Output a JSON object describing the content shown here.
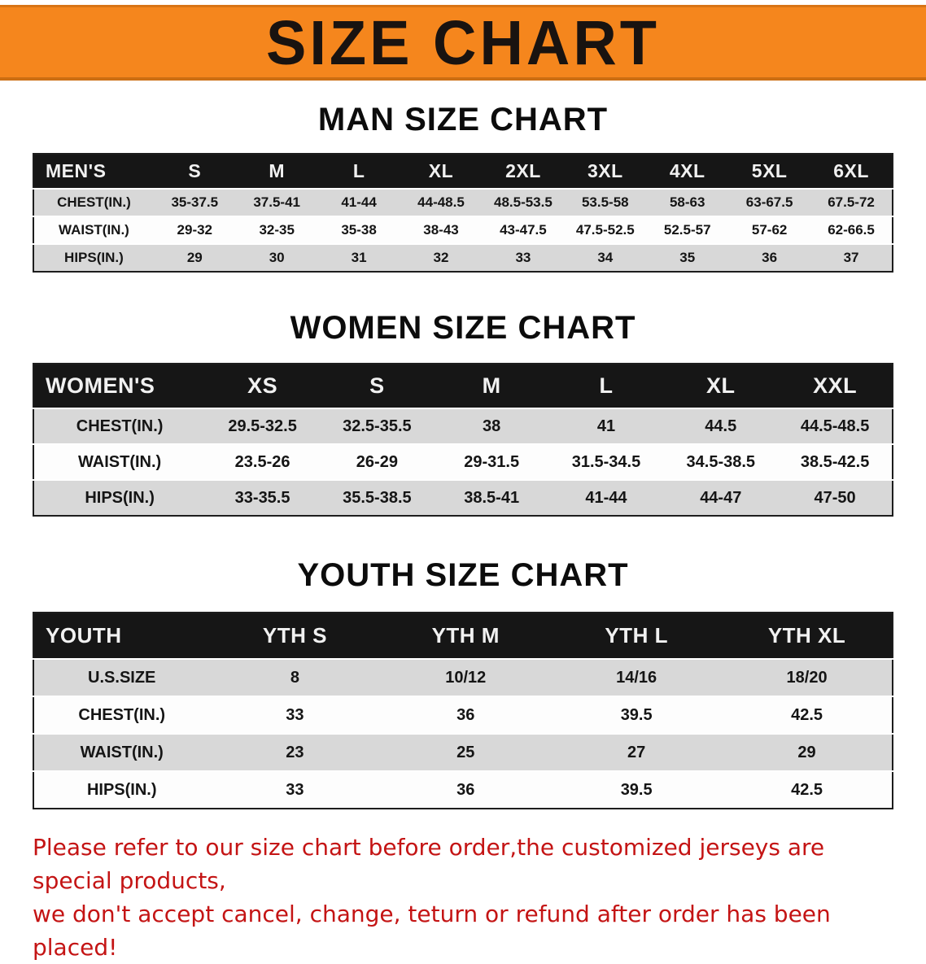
{
  "banner": {
    "title": "SIZE CHART"
  },
  "colors": {
    "banner_bg": "#f5861d",
    "table_header_bg": "#161616",
    "row_stripe": "#d8d8d8",
    "disclaimer_text": "#c41414"
  },
  "men": {
    "heading": "MAN SIZE CHART",
    "table": {
      "header": [
        "MEN'S",
        "S",
        "M",
        "L",
        "XL",
        "2XL",
        "3XL",
        "4XL",
        "5XL",
        "6XL"
      ],
      "rows": [
        [
          "CHEST(IN.)",
          "35-37.5",
          "37.5-41",
          "41-44",
          "44-48.5",
          "48.5-53.5",
          "53.5-58",
          "58-63",
          "63-67.5",
          "67.5-72"
        ],
        [
          "WAIST(IN.)",
          "29-32",
          "32-35",
          "35-38",
          "38-43",
          "43-47.5",
          "47.5-52.5",
          "52.5-57",
          "57-62",
          "62-66.5"
        ],
        [
          "HIPS(IN.)",
          "29",
          "30",
          "31",
          "32",
          "33",
          "34",
          "35",
          "36",
          "37"
        ]
      ]
    }
  },
  "women": {
    "heading": "WOMEN SIZE CHART",
    "table": {
      "header": [
        "WOMEN'S",
        "XS",
        "S",
        "M",
        "L",
        "XL",
        "XXL"
      ],
      "rows": [
        [
          "CHEST(IN.)",
          "29.5-32.5",
          "32.5-35.5",
          "38",
          "41",
          "44.5",
          "44.5-48.5"
        ],
        [
          "WAIST(IN.)",
          "23.5-26",
          "26-29",
          "29-31.5",
          "31.5-34.5",
          "34.5-38.5",
          "38.5-42.5"
        ],
        [
          "HIPS(IN.)",
          "33-35.5",
          "35.5-38.5",
          "38.5-41",
          "41-44",
          "44-47",
          "47-50"
        ]
      ]
    }
  },
  "youth": {
    "heading": "YOUTH SIZE CHART",
    "table": {
      "header": [
        "YOUTH",
        "YTH S",
        "YTH M",
        "YTH L",
        "YTH XL"
      ],
      "rows": [
        [
          "U.S.SIZE",
          "8",
          "10/12",
          "14/16",
          "18/20"
        ],
        [
          "CHEST(IN.)",
          "33",
          "36",
          "39.5",
          "42.5"
        ],
        [
          "WAIST(IN.)",
          "23",
          "25",
          "27",
          "29"
        ],
        [
          "HIPS(IN.)",
          "33",
          "36",
          "39.5",
          "42.5"
        ]
      ]
    }
  },
  "disclaimer": {
    "line1": "Please refer to our size chart before order,the customized jerseys are special products,",
    "line2": "we don't accept cancel, change, teturn or refund after order has been placed!"
  }
}
